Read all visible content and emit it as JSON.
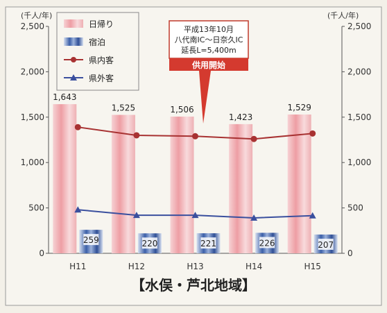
{
  "chart_data": {
    "type": "bar",
    "categories": [
      "H11",
      "H12",
      "H13",
      "H14",
      "H15"
    ],
    "series": [
      {
        "name": "日帰り",
        "kind": "bar",
        "values": [
          1643,
          1525,
          1506,
          1423,
          1529
        ],
        "color": "#f2b8bc"
      },
      {
        "name": "宿泊",
        "kind": "bar",
        "values": [
          259,
          220,
          221,
          226,
          207
        ],
        "color": "#3b5fa8"
      },
      {
        "name": "県内客",
        "kind": "line",
        "values": [
          1390,
          1300,
          1290,
          1260,
          1320
        ],
        "color": "#a83232"
      },
      {
        "name": "県外客",
        "kind": "line",
        "values": [
          480,
          420,
          420,
          390,
          415
        ],
        "color": "#3a4f9e"
      }
    ],
    "data_labels": {
      "日帰り": [
        "1,643",
        "1,525",
        "1,506",
        "1,423",
        "1,529"
      ],
      "宿泊": [
        "259",
        "220",
        "221",
        "226",
        "207"
      ]
    },
    "ylim": [
      0,
      2500
    ],
    "y_ticks": [
      "0",
      "500",
      "1,000",
      "1,500",
      "2,000",
      "2,500"
    ],
    "y_unit_left": "(千人/年)",
    "y_unit_right": "(千人/年)",
    "title": "",
    "xlabel": "",
    "ylabel": "",
    "legend_position": "top-left",
    "grid": false,
    "caption": "【水俣・芦北地域】",
    "annotation": {
      "lines": [
        "平成13年10月",
        "八代南IC～日奈久IC",
        "延長L=5,400m"
      ],
      "banner": "供用開始",
      "points_to": "H13"
    }
  }
}
